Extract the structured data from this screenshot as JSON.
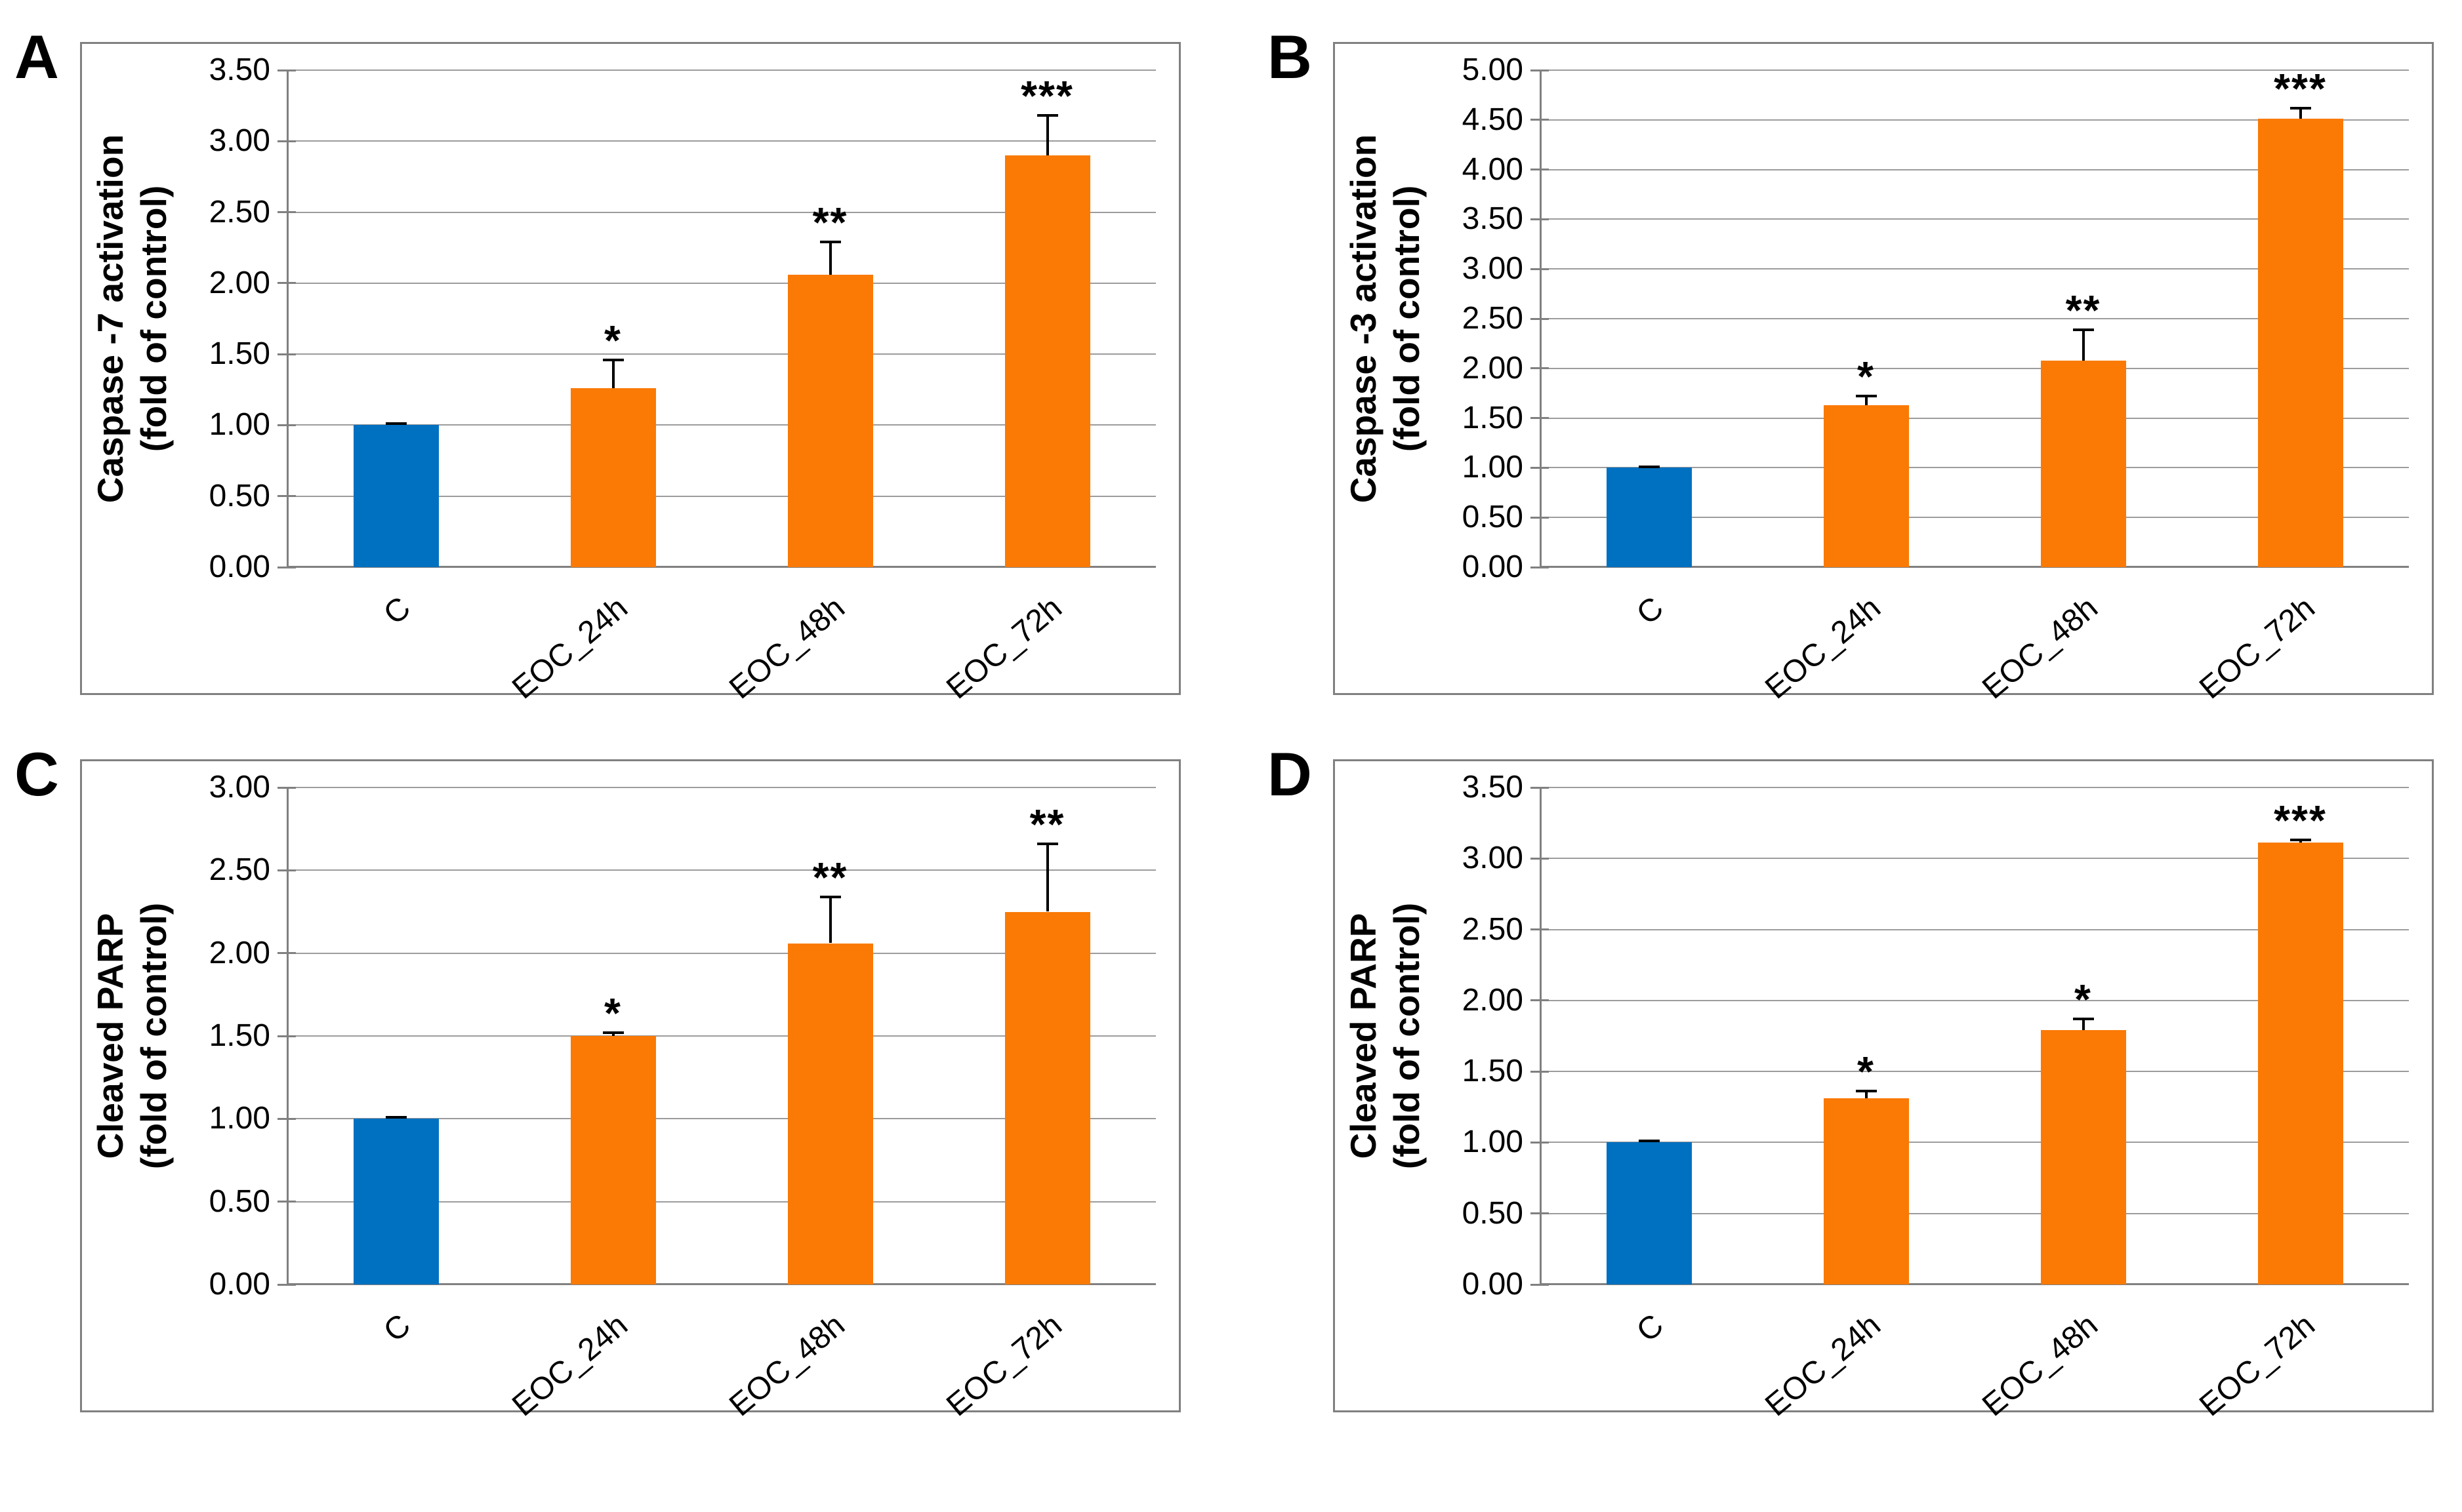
{
  "figure": {
    "background": "#ffffff",
    "control_color": "#0070C0",
    "treatment_color": "#FA7A05",
    "grid_color": "#9C9C9C",
    "axis_color": "#808080",
    "border_color": "#808080",
    "error_bar_color": "#000000",
    "text_color": "#000000"
  },
  "chart_data": [
    {
      "panel": "A",
      "type": "bar",
      "ylabel_line1": "Caspase -7 activation",
      "ylabel_line2": "(fold of control)",
      "categories": [
        "C",
        "EOC_24h",
        "EOC_48h",
        "EOC_72h"
      ],
      "values": [
        1.0,
        1.26,
        2.06,
        2.9
      ],
      "errors": [
        0.01,
        0.2,
        0.23,
        0.28
      ],
      "significance": [
        "",
        "*",
        "**",
        "***"
      ],
      "ylim": [
        0,
        3.5
      ],
      "ytick_labels": [
        "0.00",
        "0.50",
        "1.00",
        "1.50",
        "2.00",
        "2.50",
        "3.00",
        "3.50"
      ],
      "grid": true,
      "legend": null
    },
    {
      "panel": "B",
      "type": "bar",
      "ylabel_line1": "Caspase -3 activation",
      "ylabel_line2": "(fold of control)",
      "categories": [
        "C",
        "EOC_24h",
        "EOC_48h",
        "EOC_72h"
      ],
      "values": [
        1.0,
        1.63,
        2.08,
        4.51
      ],
      "errors": [
        0.01,
        0.09,
        0.31,
        0.11
      ],
      "significance": [
        "",
        "*",
        "**",
        "***"
      ],
      "ylim": [
        0,
        5.0
      ],
      "ytick_labels": [
        "0.00",
        "0.50",
        "1.00",
        "1.50",
        "2.00",
        "2.50",
        "3.00",
        "3.50",
        "4.00",
        "4.50",
        "5.00"
      ],
      "grid": true,
      "legend": null
    },
    {
      "panel": "C",
      "type": "bar",
      "ylabel_line1": "Cleaved PARP",
      "ylabel_line2": "(fold of control)",
      "categories": [
        "C",
        "EOC_24h",
        "EOC_48h",
        "EOC_72h"
      ],
      "values": [
        1.0,
        1.5,
        2.06,
        2.25
      ],
      "errors": [
        0.01,
        0.02,
        0.28,
        0.41
      ],
      "significance": [
        "",
        "*",
        "**",
        "**"
      ],
      "ylim": [
        0,
        3.0
      ],
      "ytick_labels": [
        "0.00",
        "0.50",
        "1.00",
        "1.50",
        "2.00",
        "2.50",
        "3.00"
      ],
      "grid": true,
      "legend": null
    },
    {
      "panel": "D",
      "type": "bar",
      "ylabel_line1": "Cleaved PARP",
      "ylabel_line2": "(fold of control)",
      "categories": [
        "C",
        "EOC_24h",
        "EOC_48h",
        "EOC_72h"
      ],
      "values": [
        1.0,
        1.31,
        1.79,
        3.11
      ],
      "errors": [
        0.01,
        0.05,
        0.08,
        0.02
      ],
      "significance": [
        "",
        "*",
        "*",
        "***"
      ],
      "ylim": [
        0,
        3.5
      ],
      "ytick_labels": [
        "0.00",
        "0.50",
        "1.00",
        "1.50",
        "2.00",
        "2.50",
        "3.00",
        "3.50"
      ],
      "grid": true,
      "legend": null
    }
  ]
}
